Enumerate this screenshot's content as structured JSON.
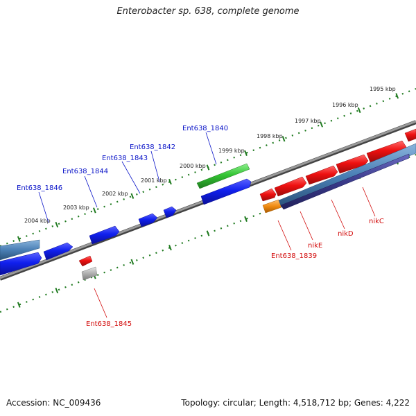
{
  "title": "Enterobacter sp. 638, complete genome",
  "footer": {
    "accession": "Accession: NC_009436",
    "stats": "Topology: circular; Length: 4,518,712 bp; Genes: 4,222"
  },
  "colors": {
    "backbone": "#7a7a7a",
    "tick": "#1f7a1f",
    "forward_gene": "#0a14e6",
    "reverse_gene": "#e60a0a",
    "forward_label": "#0a14c8",
    "reverse_label": "#d20a0a",
    "rna_gene": "#33c433",
    "pseudo_gene": "#9a9a9a",
    "operon_gene": "#f08a10",
    "cds_track": "#4a7fb5",
    "cds_track_dark": "#3a3a8a"
  },
  "scale_labels": [
    "1995 kbp",
    "1996 kbp",
    "1997 kbp",
    "1998 kbp",
    "1999 kbp",
    "2000 kbp",
    "2001 kbp",
    "2002 kbp",
    "2003 kbp",
    "2004 kbp"
  ],
  "gene_labels": {
    "forward": [
      "Ent638_1840",
      "Ent638_1842",
      "Ent638_1843",
      "Ent638_1844",
      "Ent638_1846"
    ],
    "reverse": [
      "Ent638_1845",
      "Ent638_1839",
      "nikE",
      "nikD",
      "nikC"
    ]
  }
}
